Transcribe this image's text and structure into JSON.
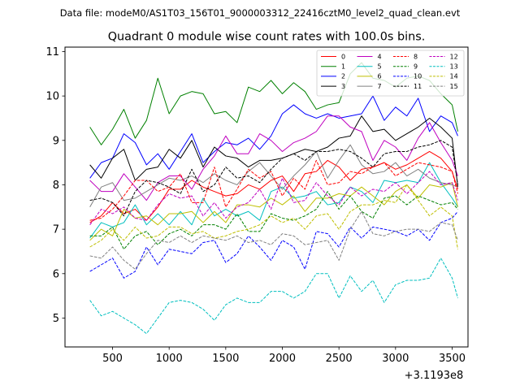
{
  "figure": {
    "suptitle": "Data file: modeM0/AS1T03_156T01_9000003312_22416cztM0_level2_quad_clean.evt",
    "offset_label": "+3.1193e8"
  },
  "chart_data": {
    "type": "line",
    "title": "Quadrant 0 module wise count rates with 100.0s bins.",
    "xlabel": "",
    "ylabel": "",
    "x_offset": 311930000,
    "xlim": [
      80,
      3640
    ],
    "ylim": [
      4.35,
      11.1
    ],
    "xticks": [
      500,
      1000,
      1500,
      2000,
      2500,
      3000,
      3500
    ],
    "xtick_labels": [
      "500",
      "1000",
      "1500",
      "2000",
      "2500",
      "3000",
      "3500"
    ],
    "yticks": [
      5,
      6,
      7,
      8,
      9,
      10,
      11
    ],
    "ytick_labels": [
      "5",
      "6",
      "7",
      "8",
      "9",
      "10",
      "11"
    ],
    "grid": false,
    "legend_position": "top-right",
    "legend_columns": 4,
    "x": [
      300,
      400,
      500,
      600,
      700,
      800,
      900,
      1000,
      1100,
      1200,
      1300,
      1400,
      1500,
      1600,
      1700,
      1800,
      1900,
      2000,
      2100,
      2200,
      2300,
      2400,
      2500,
      2600,
      2700,
      2800,
      2900,
      3000,
      3100,
      3200,
      3300,
      3400,
      3500,
      3550
    ],
    "series": [
      {
        "name": "0",
        "color": "#ff0000",
        "dash": "solid",
        "values": [
          7.15,
          7.3,
          7.6,
          7.35,
          7.45,
          7.2,
          7.5,
          7.9,
          7.9,
          8.1,
          7.95,
          7.85,
          7.75,
          7.8,
          8.0,
          7.9,
          8.1,
          8.2,
          7.85,
          8.25,
          8.3,
          8.55,
          8.4,
          8.1,
          8.35,
          8.4,
          8.5,
          8.35,
          8.45,
          8.6,
          8.75,
          8.6,
          8.3,
          7.9
        ]
      },
      {
        "name": "1",
        "color": "#008000",
        "dash": "solid",
        "values": [
          9.3,
          8.9,
          9.25,
          9.7,
          9.05,
          9.45,
          10.4,
          9.6,
          10.0,
          10.1,
          10.05,
          9.6,
          9.65,
          9.4,
          10.2,
          10.1,
          10.35,
          10.05,
          10.3,
          10.1,
          9.7,
          9.8,
          9.85,
          10.5,
          10.75,
          10.4,
          10.35,
          10.2,
          10.4,
          10.45,
          10.35,
          10.05,
          9.8,
          9.2
        ]
      },
      {
        "name": "2",
        "color": "#0000ff",
        "dash": "solid",
        "values": [
          8.15,
          8.5,
          8.6,
          9.15,
          8.95,
          8.45,
          8.7,
          8.35,
          8.75,
          9.15,
          8.5,
          8.75,
          8.95,
          8.9,
          9.05,
          8.8,
          9.1,
          9.6,
          9.8,
          9.6,
          9.5,
          9.6,
          9.5,
          9.55,
          9.6,
          10.0,
          9.45,
          9.75,
          9.55,
          9.95,
          9.2,
          9.55,
          9.4,
          9.1
        ]
      },
      {
        "name": "3",
        "color": "#000000",
        "dash": "solid",
        "values": [
          8.45,
          8.15,
          8.6,
          8.8,
          8.1,
          8.35,
          8.4,
          8.8,
          8.6,
          9.0,
          8.4,
          8.85,
          8.65,
          8.6,
          8.4,
          8.55,
          8.55,
          8.6,
          8.7,
          8.8,
          8.75,
          8.85,
          9.05,
          9.1,
          9.55,
          9.2,
          9.25,
          9.0,
          9.15,
          9.3,
          9.5,
          9.3,
          9.05,
          7.95
        ]
      },
      {
        "name": "4",
        "color": "#bf00bf",
        "dash": "solid",
        "values": [
          8.1,
          7.85,
          7.85,
          8.25,
          7.95,
          7.65,
          8.05,
          8.2,
          8.2,
          7.9,
          8.35,
          8.65,
          9.1,
          8.7,
          8.7,
          9.15,
          9.0,
          8.75,
          8.95,
          9.05,
          9.2,
          9.55,
          9.55,
          9.3,
          9.2,
          8.55,
          9.0,
          8.85,
          8.55,
          9.05,
          9.4,
          8.95,
          8.55,
          8.2
        ]
      },
      {
        "name": "5",
        "color": "#00bfbf",
        "dash": "solid",
        "values": [
          6.8,
          7.15,
          7.05,
          7.15,
          7.55,
          7.1,
          7.35,
          7.1,
          7.4,
          7.1,
          7.7,
          7.3,
          7.45,
          7.3,
          7.4,
          7.2,
          7.85,
          7.95,
          7.7,
          7.75,
          7.85,
          7.55,
          7.6,
          7.95,
          7.85,
          7.6,
          8.1,
          8.05,
          8.1,
          8.05,
          8.5,
          8.05,
          7.7,
          7.5
        ]
      },
      {
        "name": "6",
        "color": "#bfbf00",
        "dash": "solid",
        "values": [
          6.75,
          7.0,
          6.85,
          7.45,
          7.25,
          7.3,
          7.1,
          7.35,
          7.35,
          7.4,
          7.15,
          7.4,
          7.15,
          7.55,
          7.55,
          7.5,
          7.7,
          7.55,
          7.75,
          7.4,
          7.7,
          7.7,
          7.8,
          7.75,
          7.95,
          7.75,
          7.55,
          7.85,
          8.0,
          7.7,
          8.0,
          7.95,
          8.05,
          7.5
        ]
      },
      {
        "name": "7",
        "color": "#808080",
        "dash": "solid",
        "values": [
          7.5,
          7.95,
          8.05,
          7.65,
          7.7,
          7.85,
          8.0,
          8.15,
          8.1,
          8.2,
          8.05,
          8.25,
          8.1,
          8.0,
          8.3,
          8.5,
          8.2,
          7.9,
          8.2,
          8.45,
          8.75,
          8.15,
          8.55,
          8.9,
          8.45,
          8.25,
          8.3,
          8.5,
          8.2,
          8.35,
          8.15,
          8.05,
          8.0,
          7.95
        ]
      },
      {
        "name": "8",
        "color": "#ff0000",
        "dash": "dashed",
        "values": [
          7.2,
          7.25,
          7.45,
          7.75,
          8.1,
          8.1,
          7.85,
          7.95,
          8.25,
          7.6,
          7.6,
          8.4,
          7.5,
          7.9,
          8.35,
          8.15,
          8.3,
          7.75,
          8.15,
          7.9,
          8.55,
          8.0,
          8.05,
          8.3,
          8.25,
          8.4,
          8.5,
          8.2,
          8.35,
          8.5,
          8.45,
          8.4,
          8.3,
          7.8
        ]
      },
      {
        "name": "9",
        "color": "#008000",
        "dash": "dashed",
        "values": [
          6.85,
          6.85,
          7.05,
          6.55,
          6.85,
          6.95,
          6.65,
          6.9,
          7.0,
          6.85,
          7.1,
          7.1,
          7.0,
          7.35,
          6.95,
          6.95,
          7.35,
          7.25,
          7.2,
          7.3,
          7.45,
          7.85,
          7.45,
          7.75,
          7.4,
          7.25,
          7.7,
          7.75,
          7.55,
          7.75,
          7.65,
          7.55,
          7.6,
          7.45
        ]
      },
      {
        "name": "10",
        "color": "#0000ff",
        "dash": "dashed",
        "values": [
          6.05,
          6.2,
          6.35,
          5.9,
          6.05,
          6.6,
          6.2,
          6.55,
          6.5,
          6.45,
          6.7,
          6.75,
          6.25,
          6.45,
          6.85,
          6.6,
          6.3,
          6.75,
          6.6,
          6.1,
          6.95,
          6.9,
          6.6,
          7.05,
          6.8,
          7.05,
          7.0,
          6.95,
          6.85,
          7.0,
          6.75,
          7.15,
          7.25,
          7.4
        ]
      },
      {
        "name": "11",
        "color": "#000000",
        "dash": "dashed",
        "values": [
          7.65,
          7.7,
          7.6,
          7.3,
          7.85,
          8.1,
          8.05,
          7.95,
          7.8,
          8.35,
          7.85,
          8.0,
          8.4,
          8.15,
          8.2,
          8.05,
          8.35,
          8.6,
          8.7,
          8.55,
          8.75,
          8.75,
          8.8,
          8.75,
          8.6,
          8.4,
          8.7,
          8.75,
          8.75,
          8.85,
          8.9,
          9.0,
          8.85,
          8.0
        ]
      },
      {
        "name": "12",
        "color": "#bf00bf",
        "dash": "dashed",
        "values": [
          7.1,
          7.45,
          7.35,
          7.5,
          7.25,
          7.2,
          7.55,
          7.8,
          7.7,
          7.75,
          7.3,
          7.6,
          7.25,
          7.5,
          7.6,
          7.9,
          7.45,
          8.15,
          7.6,
          7.65,
          8.05,
          7.75,
          7.55,
          7.95,
          7.75,
          7.9,
          7.85,
          8.05,
          7.8,
          8.05,
          8.3,
          8.0,
          8.05,
          7.65
        ]
      },
      {
        "name": "13",
        "color": "#00bfbf",
        "dash": "dashed",
        "values": [
          5.4,
          5.05,
          5.15,
          5.0,
          4.85,
          4.65,
          5.0,
          5.35,
          5.4,
          5.35,
          5.2,
          4.95,
          5.3,
          5.45,
          5.35,
          5.35,
          5.6,
          5.6,
          5.45,
          5.6,
          6.0,
          6.0,
          5.45,
          5.95,
          5.6,
          5.85,
          5.35,
          5.75,
          5.85,
          5.85,
          5.9,
          6.35,
          5.9,
          5.45
        ]
      },
      {
        "name": "14",
        "color": "#bfbf00",
        "dash": "dashed",
        "values": [
          6.6,
          6.75,
          7.0,
          6.75,
          7.05,
          6.8,
          6.85,
          7.05,
          7.05,
          6.9,
          6.95,
          6.8,
          6.85,
          6.95,
          7.0,
          7.1,
          7.3,
          7.15,
          7.25,
          7.0,
          7.3,
          7.35,
          7.0,
          7.4,
          7.55,
          7.55,
          7.65,
          7.6,
          8.0,
          7.65,
          7.3,
          7.5,
          7.3,
          6.55
        ]
      },
      {
        "name": "15",
        "color": "#808080",
        "dash": "dashed",
        "values": [
          6.4,
          6.35,
          6.6,
          6.3,
          6.1,
          6.45,
          6.75,
          6.7,
          6.85,
          6.7,
          6.85,
          6.8,
          6.75,
          6.85,
          6.7,
          6.75,
          6.65,
          6.9,
          6.85,
          6.65,
          6.7,
          6.75,
          6.3,
          7.0,
          7.4,
          6.9,
          6.85,
          6.95,
          7.0,
          7.0,
          6.95,
          7.15,
          7.1,
          6.75
        ]
      }
    ]
  }
}
